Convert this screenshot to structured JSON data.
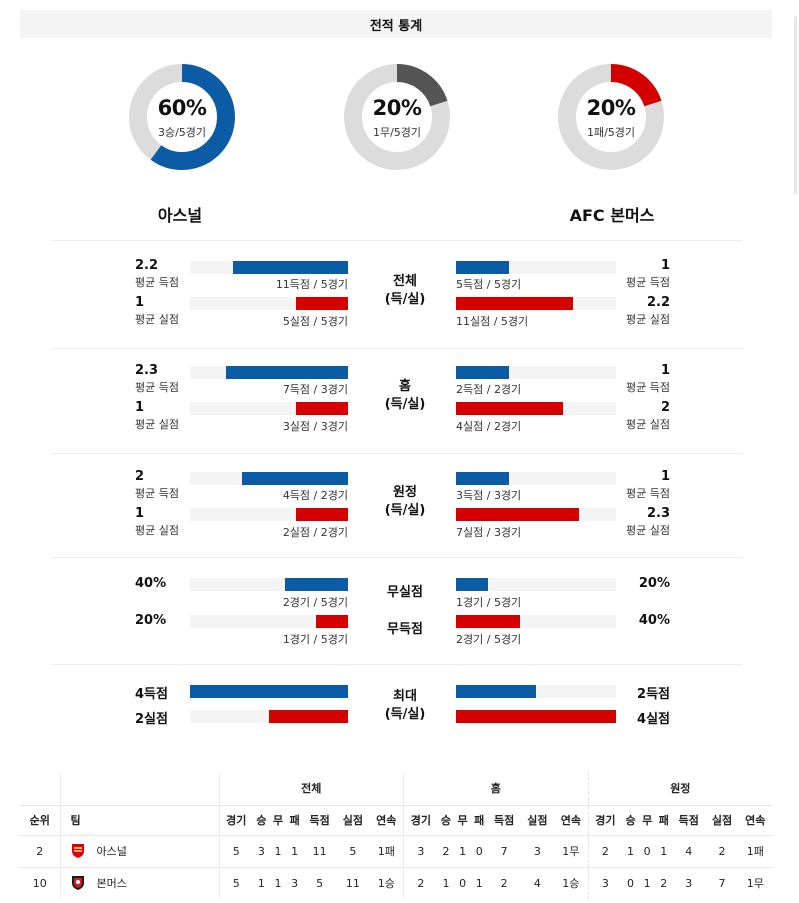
{
  "header": {
    "title": "전적 통계"
  },
  "colors": {
    "blue": "#0b5ba5",
    "red": "#d40000",
    "gray": "#555555",
    "track": "#dcdcdc"
  },
  "donuts": [
    {
      "id": "home-win",
      "percent": "60%",
      "percent_value": 60,
      "sub": "3승/5경기",
      "color": "#0b5ba5"
    },
    {
      "id": "draw",
      "percent": "20%",
      "percent_value": 20,
      "sub": "1무/5경기",
      "color": "#555555"
    },
    {
      "id": "away-loss",
      "percent": "20%",
      "percent_value": 20,
      "sub": "1패/5경기",
      "color": "#d40000"
    }
  ],
  "teams": {
    "home": "아스널",
    "away": "AFC 본머스"
  },
  "stats": [
    {
      "label_line1": "전체",
      "label_line2": "(득/실)",
      "home": {
        "scored": {
          "value": "2.2",
          "label": "평균 득점",
          "caption": "11득점 / 5경기",
          "ratio": 0.73
        },
        "conceded": {
          "value": "1",
          "label": "평균 실점",
          "caption": "5실점 / 5경기",
          "ratio": 0.33
        }
      },
      "away": {
        "scored": {
          "value": "1",
          "label": "평균 득점",
          "caption": "5득점 / 5경기",
          "ratio": 0.33
        },
        "conceded": {
          "value": "2.2",
          "label": "평균 실점",
          "caption": "11실점 / 5경기",
          "ratio": 0.73
        }
      }
    },
    {
      "label_line1": "홈",
      "label_line2": "(득/실)",
      "home": {
        "scored": {
          "value": "2.3",
          "label": "평균 득점",
          "caption": "7득점 / 3경기",
          "ratio": 0.77
        },
        "conceded": {
          "value": "1",
          "label": "평균 실점",
          "caption": "3실점 / 3경기",
          "ratio": 0.33
        }
      },
      "away": {
        "scored": {
          "value": "1",
          "label": "평균 득점",
          "caption": "2득점 / 2경기",
          "ratio": 0.33
        },
        "conceded": {
          "value": "2",
          "label": "평균 실점",
          "caption": "4실점 / 2경기",
          "ratio": 0.67
        }
      }
    },
    {
      "label_line1": "원정",
      "label_line2": "(득/실)",
      "home": {
        "scored": {
          "value": "2",
          "label": "평균 득점",
          "caption": "4득점 / 2경기",
          "ratio": 0.67
        },
        "conceded": {
          "value": "1",
          "label": "평균 실점",
          "caption": "2실점 / 2경기",
          "ratio": 0.33
        }
      },
      "away": {
        "scored": {
          "value": "1",
          "label": "평균 득점",
          "caption": "3득점 / 3경기",
          "ratio": 0.33
        },
        "conceded": {
          "value": "2.3",
          "label": "평균 실점",
          "caption": "7실점 / 3경기",
          "ratio": 0.77
        }
      }
    }
  ],
  "clean": {
    "clean_sheet": {
      "label": "무실점",
      "home": {
        "value": "40%",
        "caption": "2경기 / 5경기",
        "ratio": 0.4
      },
      "away": {
        "value": "20%",
        "caption": "1경기 / 5경기",
        "ratio": 0.2
      }
    },
    "no_score": {
      "label": "무득점",
      "home": {
        "value": "20%",
        "caption": "1경기 / 5경기",
        "ratio": 0.2
      },
      "away": {
        "value": "40%",
        "caption": "2경기 / 5경기",
        "ratio": 0.4
      }
    }
  },
  "max": {
    "label_line1": "최대",
    "label_line2": "(득/실)",
    "home": {
      "scored": {
        "value": "4득점",
        "ratio": 1.0
      },
      "conceded": {
        "value": "2실점",
        "ratio": 0.5
      }
    },
    "away": {
      "scored": {
        "value": "2득점",
        "ratio": 0.5
      },
      "conceded": {
        "value": "4실점",
        "ratio": 1.0
      }
    }
  },
  "table": {
    "groups": [
      "전체",
      "홈",
      "원정"
    ],
    "rank_header": "순위",
    "team_header": "팀",
    "sub_columns": [
      "경기",
      "승",
      "무",
      "패",
      "득점",
      "실점",
      "연속"
    ],
    "rows": [
      {
        "rank": "2",
        "team": "아스널",
        "logo": "arsenal-crest",
        "overall": [
          "5",
          "3",
          "1",
          "1",
          "11",
          "5",
          "1패"
        ],
        "home": [
          "3",
          "2",
          "1",
          "0",
          "7",
          "3",
          "1무"
        ],
        "away": [
          "2",
          "1",
          "0",
          "1",
          "4",
          "2",
          "1패"
        ]
      },
      {
        "rank": "10",
        "team": "본머스",
        "logo": "bournemouth-crest",
        "overall": [
          "5",
          "1",
          "1",
          "3",
          "5",
          "11",
          "1승"
        ],
        "home": [
          "2",
          "1",
          "0",
          "1",
          "2",
          "4",
          "1승"
        ],
        "away": [
          "3",
          "0",
          "1",
          "2",
          "3",
          "7",
          "1무"
        ]
      }
    ]
  }
}
